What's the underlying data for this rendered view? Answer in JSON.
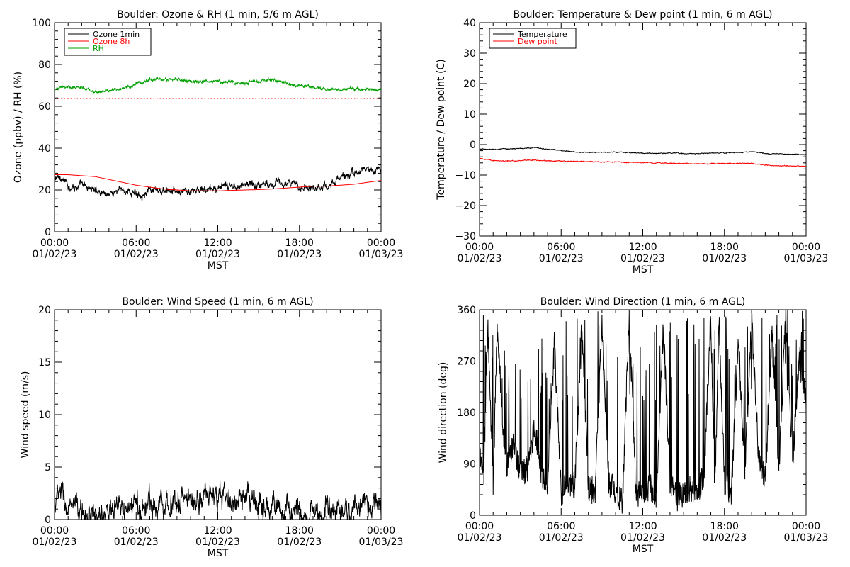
{
  "chart_data": [
    {
      "type": "line",
      "title": "Boulder: Ozone & RH (1 min, 5/6 m AGL)",
      "xlabel": "MST",
      "ylabel": "Ozone (ppbv) / RH (%)",
      "xlim": [
        0,
        24
      ],
      "ylim": [
        0,
        110
      ],
      "xticks": [
        {
          "time": "00:00",
          "date": "01/02/23"
        },
        {
          "time": "06:00",
          "date": "01/02/23"
        },
        {
          "time": "12:00",
          "date": "01/02/23"
        },
        {
          "time": "18:00",
          "date": "01/02/23"
        },
        {
          "time": "00:00",
          "date": "01/03/23"
        }
      ],
      "yticks": [
        "0",
        "20",
        "40",
        "60",
        "80",
        "100"
      ],
      "legend_position": "top-left",
      "series": [
        {
          "name": "Ozone 1min",
          "color": "#000000",
          "x": [
            0,
            0.5,
            1,
            2,
            3,
            4,
            5,
            6,
            7,
            8,
            9,
            10,
            11,
            12,
            13,
            14,
            15,
            16,
            17,
            18,
            19,
            20,
            21,
            22,
            23,
            24
          ],
          "y": [
            28,
            29,
            24,
            24,
            22,
            20,
            22,
            20,
            21,
            21,
            21,
            21,
            22,
            23,
            24,
            25,
            25,
            26,
            25,
            24,
            24,
            24,
            28,
            31,
            33,
            32
          ]
        },
        {
          "name": "Ozone 8h",
          "color": "#ff0000",
          "x": [
            0,
            1,
            2,
            3,
            4,
            5,
            6,
            7,
            8,
            9,
            10,
            11,
            12,
            13,
            14,
            15,
            16,
            17,
            18,
            19,
            20,
            21,
            22,
            23,
            24
          ],
          "y": [
            30,
            30,
            29.5,
            29,
            27.5,
            26,
            24.5,
            23.5,
            22.5,
            22,
            21.5,
            21.5,
            21.5,
            21.8,
            22,
            22.2,
            22.5,
            23,
            23.5,
            24,
            24,
            24.5,
            25,
            26,
            27
          ]
        },
        {
          "name": "RH",
          "color": "#00a000",
          "x": [
            0,
            1,
            2,
            3,
            4,
            5,
            6,
            7,
            8,
            9,
            10,
            11,
            12,
            13,
            14,
            15,
            16,
            17,
            18,
            19,
            20,
            21,
            22,
            23,
            24
          ],
          "y": [
            75,
            76,
            76,
            74,
            74,
            75,
            78,
            80,
            80,
            80,
            79,
            79,
            79,
            79,
            78,
            79,
            80,
            78,
            77,
            76,
            75,
            75,
            75,
            75,
            75
          ]
        },
        {
          "name": "",
          "color": "#ff0000",
          "style": "dotted",
          "x": [
            0,
            24
          ],
          "y": [
            70,
            70
          ]
        }
      ]
    },
    {
      "type": "line",
      "title": "Boulder: Temperature & Dew point (1 min, 6 m AGL)",
      "xlabel": "MST",
      "ylabel": "Temperature / Dew point (C)",
      "xlim": [
        0,
        24
      ],
      "ylim": [
        -30,
        40
      ],
      "xticks": [
        {
          "time": "00:00",
          "date": "01/02/23"
        },
        {
          "time": "06:00",
          "date": "01/02/23"
        },
        {
          "time": "12:00",
          "date": "01/02/23"
        },
        {
          "time": "18:00",
          "date": "01/02/23"
        },
        {
          "time": "00:00",
          "date": "01/03/23"
        }
      ],
      "yticks": [
        "−30",
        "−20",
        "−10",
        "0",
        "10",
        "20",
        "30",
        "40"
      ],
      "legend_position": "top-left",
      "series": [
        {
          "name": "Temperature",
          "color": "#000000",
          "x": [
            0,
            1,
            2,
            3,
            4,
            5,
            6,
            7,
            8,
            9,
            10,
            11,
            12,
            13,
            14,
            15,
            16,
            17,
            18,
            19,
            20,
            20.5,
            21,
            22,
            23,
            24
          ],
          "y": [
            -1.5,
            -1.6,
            -1.4,
            -1.3,
            -1.0,
            -1.4,
            -2.0,
            -2.4,
            -2.6,
            -2.5,
            -2.5,
            -2.6,
            -2.8,
            -2.9,
            -2.8,
            -2.9,
            -3.0,
            -2.8,
            -2.7,
            -2.6,
            -2.4,
            -2.5,
            -3.0,
            -3.1,
            -3.2,
            -3.3
          ]
        },
        {
          "name": "Dew point",
          "color": "#ff0000",
          "x": [
            0,
            1,
            2,
            3,
            4,
            5,
            6,
            7,
            8,
            9,
            10,
            11,
            12,
            13,
            14,
            15,
            16,
            17,
            18,
            19,
            20,
            20.5,
            21,
            22,
            23,
            24
          ],
          "y": [
            -4.5,
            -5.3,
            -5.4,
            -5.2,
            -5.1,
            -5.3,
            -5.4,
            -5.5,
            -5.6,
            -5.7,
            -5.7,
            -5.8,
            -5.9,
            -6.0,
            -6.1,
            -6.2,
            -6.3,
            -6.3,
            -6.2,
            -6.2,
            -6.1,
            -6.4,
            -6.8,
            -6.9,
            -7.0,
            -7.1
          ]
        }
      ]
    },
    {
      "type": "line",
      "title": "Boulder: Wind Speed (1 min, 6 m AGL)",
      "xlabel": "MST",
      "ylabel": "Wind speed (m/s)",
      "xlim": [
        0,
        24
      ],
      "ylim": [
        0,
        20
      ],
      "xticks": [
        {
          "time": "00:00",
          "date": "01/02/23"
        },
        {
          "time": "06:00",
          "date": "01/02/23"
        },
        {
          "time": "12:00",
          "date": "01/02/23"
        },
        {
          "time": "18:00",
          "date": "01/02/23"
        },
        {
          "time": "00:00",
          "date": "01/03/23"
        }
      ],
      "yticks": [
        "0",
        "5",
        "10",
        "15",
        "20"
      ],
      "series": [
        {
          "name": "",
          "color": "#000000",
          "x": [
            0,
            0.5,
            1,
            2,
            3,
            4,
            5,
            6,
            7,
            8,
            9,
            10,
            11,
            12,
            13,
            14,
            15,
            16,
            17,
            18,
            19,
            20,
            21,
            22,
            23,
            24
          ],
          "y": [
            1.5,
            2.5,
            0.8,
            0.6,
            0.4,
            0.5,
            0.8,
            1.2,
            1.5,
            1.8,
            1.7,
            2.0,
            2.4,
            2.2,
            1.8,
            1.5,
            1.6,
            1.3,
            0.9,
            0.6,
            0.5,
            0.6,
            0.8,
            1.2,
            1.4,
            1.0
          ]
        }
      ]
    },
    {
      "type": "line",
      "title": "Boulder: Wind Direction (1 min, 6 m AGL)",
      "xlabel": "MST",
      "ylabel": "Wind direction (deg)",
      "xlim": [
        0,
        24
      ],
      "ylim": [
        0,
        360
      ],
      "xticks": [
        {
          "time": "00:00",
          "date": "01/02/23"
        },
        {
          "time": "06:00",
          "date": "01/02/23"
        },
        {
          "time": "12:00",
          "date": "01/02/23"
        },
        {
          "time": "18:00",
          "date": "01/02/23"
        },
        {
          "time": "00:00",
          "date": "01/03/23"
        }
      ],
      "yticks": [
        "0",
        "90",
        "180",
        "270",
        "360"
      ],
      "series": [
        {
          "name": "",
          "color": "#000000",
          "x": [
            0,
            0.3,
            0.6,
            1.0,
            1.3,
            1.7,
            2.0,
            2.5,
            3.0,
            3.5,
            4.0,
            4.3,
            4.6,
            5.0,
            5.5,
            6.0,
            6.5,
            7.0,
            7.5,
            8.0,
            8.5,
            9.0,
            9.5,
            10.0,
            10.5,
            11.0,
            11.5,
            12.0,
            12.5,
            13.0,
            13.5,
            14.0,
            14.5,
            15.0,
            15.5,
            16.0,
            16.5,
            17.0,
            17.3,
            17.6,
            18.0,
            18.5,
            19.0,
            19.5,
            20.0,
            20.5,
            21.0,
            21.5,
            22.0,
            22.5,
            23.0,
            23.5,
            24.0
          ],
          "y": [
            110,
            60,
            340,
            40,
            350,
            160,
            90,
            130,
            70,
            80,
            150,
            120,
            60,
            50,
            300,
            40,
            60,
            50,
            330,
            50,
            40,
            340,
            60,
            40,
            20,
            350,
            40,
            40,
            50,
            30,
            330,
            60,
            30,
            40,
            50,
            40,
            70,
            350,
            40,
            340,
            60,
            30,
            300,
            80,
            340,
            110,
            60,
            330,
            70,
            350,
            90,
            280,
            200
          ]
        }
      ]
    }
  ]
}
